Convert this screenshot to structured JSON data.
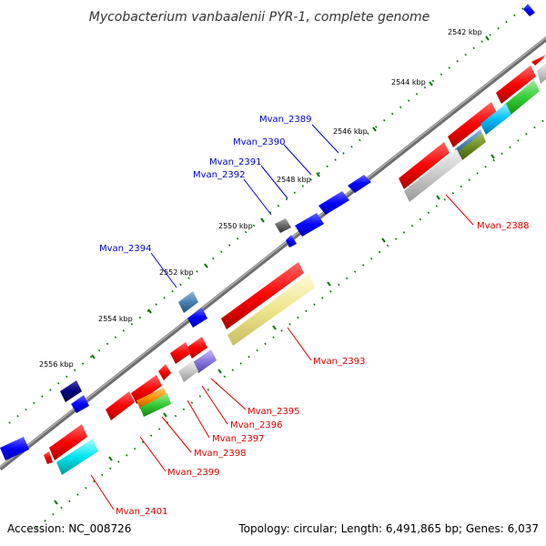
{
  "title": "Mycobacterium vanbaalenii PYR-1, complete genome",
  "footer": {
    "accession": "Accession: NC_008726",
    "summary": "Topology: circular; Length: 6,491,865 bp; Genes: 6,037"
  },
  "scale_labels": [
    "2542 kbp",
    "2544 kbp",
    "2546 kbp",
    "2548 kbp",
    "2550 kbp",
    "2552 kbp",
    "2554 kbp",
    "2556 kbp"
  ],
  "gene_labels_forward": [
    "Mvan_2389",
    "Mvan_2390",
    "Mvan_2391",
    "Mvan_2392",
    "Mvan_2394"
  ],
  "gene_labels_reverse": [
    "Mvan_2388",
    "Mvan_2393",
    "Mvan_2395",
    "Mvan_2396",
    "Mvan_2397",
    "Mvan_2398",
    "Mvan_2399",
    "Mvan_2401"
  ],
  "colors": {
    "forward_label": "#0000cc",
    "reverse_label": "#dd0000",
    "backbone": "#888888",
    "tick": "#007700"
  }
}
